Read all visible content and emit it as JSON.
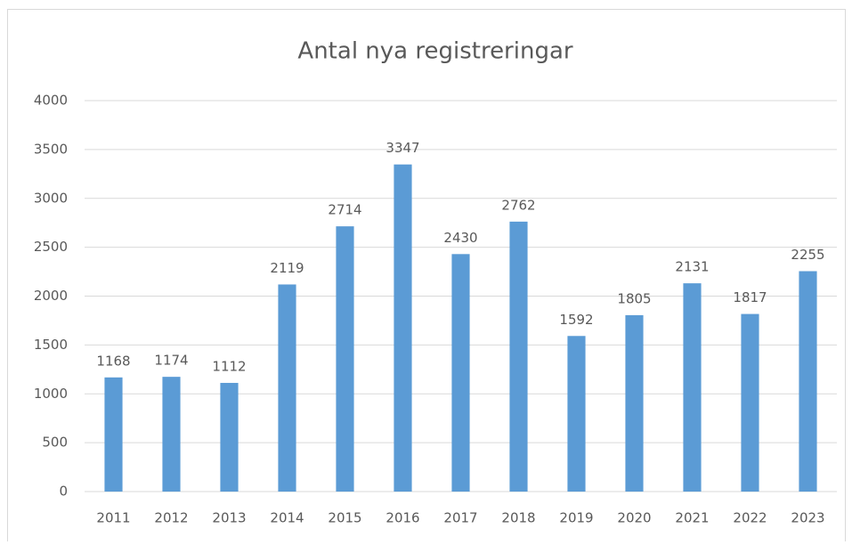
{
  "chart_data": {
    "type": "bar",
    "title": "Antal nya registreringar",
    "categories": [
      "2011",
      "2012",
      "2013",
      "2014",
      "2015",
      "2016",
      "2017",
      "2018",
      "2019",
      "2020",
      "2021",
      "2022",
      "2023"
    ],
    "values": [
      1168,
      1174,
      1112,
      2119,
      2714,
      3347,
      2430,
      2762,
      1592,
      1805,
      2131,
      1817,
      2255
    ],
    "color": "#5b9bd5",
    "ylim": [
      0,
      4000
    ],
    "yticks": [
      0,
      500,
      1000,
      1500,
      2000,
      2500,
      3000,
      3500,
      4000
    ],
    "grid": true
  }
}
